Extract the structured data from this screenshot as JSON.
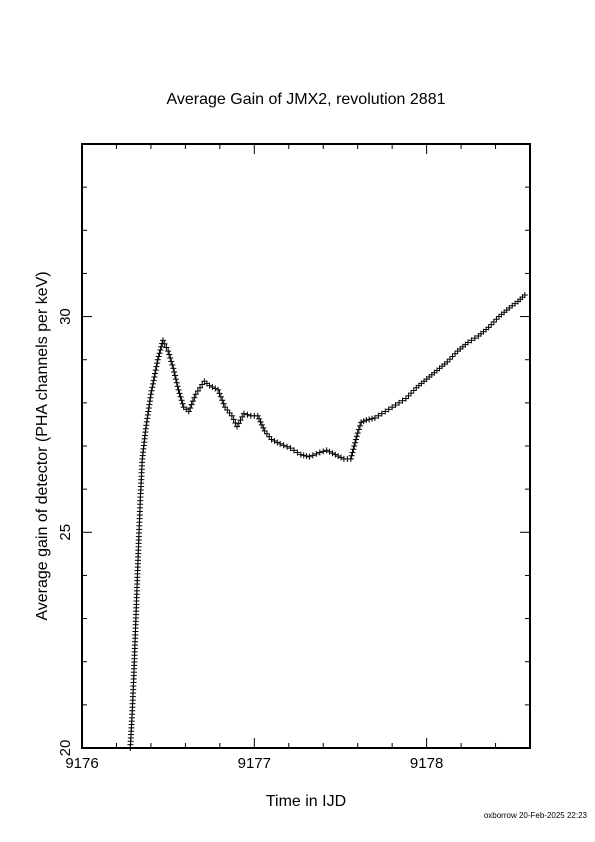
{
  "chart_data": {
    "type": "scatter",
    "title": "Average Gain of JMX2, revolution 2881",
    "xlabel": "Time in IJD",
    "ylabel": "Average gain of detector (PHA channels per keV)",
    "footer": "oxborrow 20-Feb-2025 22:23",
    "xlim": [
      9176,
      9178.6
    ],
    "ylim": [
      20,
      34
    ],
    "x_ticks": [
      9176,
      9177,
      9178
    ],
    "x_tick_labels": [
      "9176",
      "9177",
      "9178"
    ],
    "y_ticks": [
      20,
      25,
      30
    ],
    "y_tick_labels": [
      "20",
      "25",
      "30"
    ],
    "marker": "plus",
    "grid": false,
    "series": [
      {
        "points": [
          [
            9176.28,
            20.0
          ],
          [
            9176.29,
            20.7
          ],
          [
            9176.3,
            21.6
          ],
          [
            9176.31,
            22.7
          ],
          [
            9176.32,
            23.8
          ],
          [
            9176.33,
            24.9
          ],
          [
            9176.34,
            25.9
          ],
          [
            9176.35,
            26.7
          ],
          [
            9176.37,
            27.4
          ],
          [
            9176.4,
            28.2
          ],
          [
            9176.44,
            29.0
          ],
          [
            9176.47,
            29.45
          ],
          [
            9176.5,
            29.2
          ],
          [
            9176.53,
            28.8
          ],
          [
            9176.56,
            28.3
          ],
          [
            9176.59,
            27.9
          ],
          [
            9176.62,
            27.8
          ],
          [
            9176.66,
            28.2
          ],
          [
            9176.71,
            28.5
          ],
          [
            9176.74,
            28.4
          ],
          [
            9176.79,
            28.3
          ],
          [
            9176.83,
            27.9
          ],
          [
            9176.87,
            27.7
          ],
          [
            9176.9,
            27.45
          ],
          [
            9176.94,
            27.75
          ],
          [
            9176.98,
            27.7
          ],
          [
            9177.02,
            27.7
          ],
          [
            9177.06,
            27.35
          ],
          [
            9177.1,
            27.15
          ],
          [
            9177.15,
            27.05
          ],
          [
            9177.21,
            26.95
          ],
          [
            9177.27,
            26.8
          ],
          [
            9177.32,
            26.75
          ],
          [
            9177.38,
            26.85
          ],
          [
            9177.42,
            26.9
          ],
          [
            9177.47,
            26.8
          ],
          [
            9177.52,
            26.7
          ],
          [
            9177.56,
            26.7
          ],
          [
            9177.58,
            27.0
          ],
          [
            9177.6,
            27.3
          ],
          [
            9177.62,
            27.55
          ],
          [
            9177.65,
            27.6
          ],
          [
            9177.7,
            27.65
          ],
          [
            9177.76,
            27.8
          ],
          [
            9177.82,
            27.95
          ],
          [
            9177.88,
            28.1
          ],
          [
            9177.94,
            28.35
          ],
          [
            9178.0,
            28.55
          ],
          [
            9178.06,
            28.75
          ],
          [
            9178.12,
            28.95
          ],
          [
            9178.18,
            29.2
          ],
          [
            9178.24,
            29.4
          ],
          [
            9178.3,
            29.55
          ],
          [
            9178.36,
            29.75
          ],
          [
            9178.42,
            30.0
          ],
          [
            9178.48,
            30.2
          ],
          [
            9178.53,
            30.35
          ],
          [
            9178.57,
            30.5
          ]
        ]
      }
    ]
  }
}
